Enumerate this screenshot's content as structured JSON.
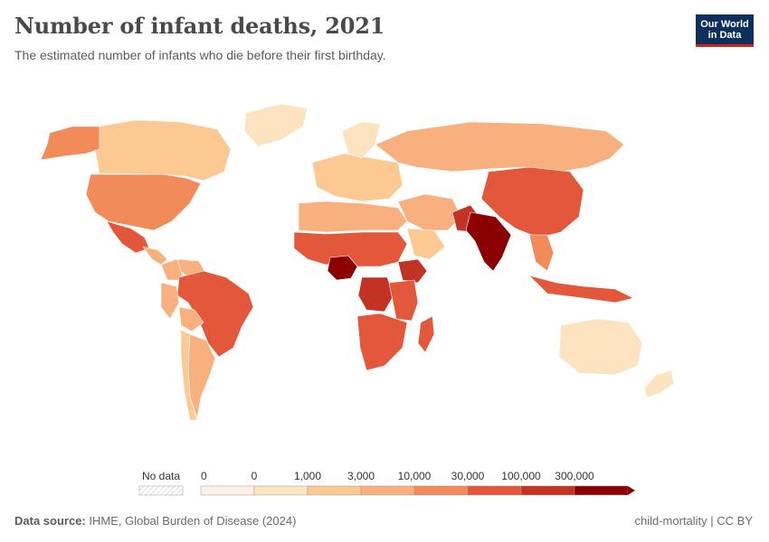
{
  "header": {
    "title": "Number of infant deaths, 2021",
    "subtitle": "The estimated number of infants who die before their first birthday."
  },
  "logo": {
    "line1": "Our World",
    "line2": "in Data"
  },
  "legend": {
    "no_data_label": "No data",
    "bins": [
      {
        "from": "0",
        "to": "0",
        "color": "#fef0e4"
      },
      {
        "from": "0",
        "to": "1,000",
        "color": "#fde3bf"
      },
      {
        "from": "1,000",
        "to": "3,000",
        "color": "#fbc991"
      },
      {
        "from": "3,000",
        "to": "10,000",
        "color": "#f8b07e"
      },
      {
        "from": "10,000",
        "to": "30,000",
        "color": "#f18c5a"
      },
      {
        "from": "30,000",
        "to": "100,000",
        "color": "#e3573b"
      },
      {
        "from": "100,000",
        "to": "300,000",
        "color": "#c23323"
      },
      {
        "from": "300,000",
        "to": "",
        "color": "#8b0000"
      }
    ],
    "tick_labels": [
      "0",
      "0",
      "1,000",
      "3,000",
      "10,000",
      "30,000",
      "100,000",
      "300,000"
    ]
  },
  "footer": {
    "source_label": "Data source:",
    "source_text": "IHME, Global Burden of Disease (2024)",
    "right_text": "child-mortality | CC BY"
  },
  "map_regions": [
    {
      "name": "Canada",
      "color": "#fbc991"
    },
    {
      "name": "Greenland",
      "color": "#fde3bf"
    },
    {
      "name": "Alaska",
      "color": "#f18c5a"
    },
    {
      "name": "United States",
      "color": "#f18c5a"
    },
    {
      "name": "Mexico",
      "color": "#e3573b"
    },
    {
      "name": "Central America",
      "color": "#f8b07e"
    },
    {
      "name": "Colombia",
      "color": "#f8b07e"
    },
    {
      "name": "Venezuela",
      "color": "#f8b07e"
    },
    {
      "name": "Brazil",
      "color": "#e3573b"
    },
    {
      "name": "Peru",
      "color": "#f8b07e"
    },
    {
      "name": "Bolivia",
      "color": "#f8b07e"
    },
    {
      "name": "Argentina",
      "color": "#f8b07e"
    },
    {
      "name": "Chile",
      "color": "#fbc991"
    },
    {
      "name": "Europe",
      "color": "#fbc991"
    },
    {
      "name": "Scandinavia",
      "color": "#fde3bf"
    },
    {
      "name": "Russia",
      "color": "#f8b07e"
    },
    {
      "name": "North Africa",
      "color": "#f8b07e"
    },
    {
      "name": "Sahel",
      "color": "#e3573b"
    },
    {
      "name": "Nigeria",
      "color": "#8b0000"
    },
    {
      "name": "Ethiopia",
      "color": "#c23323"
    },
    {
      "name": "DR Congo",
      "color": "#c23323"
    },
    {
      "name": "East Africa",
      "color": "#e3573b"
    },
    {
      "name": "Southern Africa",
      "color": "#e3573b"
    },
    {
      "name": "Madagascar",
      "color": "#e3573b"
    },
    {
      "name": "Middle East",
      "color": "#f8b07e"
    },
    {
      "name": "Arabia",
      "color": "#fbc991"
    },
    {
      "name": "Pakistan",
      "color": "#c23323"
    },
    {
      "name": "India",
      "color": "#8b0000"
    },
    {
      "name": "China",
      "color": "#e3573b"
    },
    {
      "name": "Southeast Asia",
      "color": "#f18c5a"
    },
    {
      "name": "Indonesia",
      "color": "#e3573b"
    },
    {
      "name": "Australia",
      "color": "#fde3bf"
    },
    {
      "name": "New Zealand",
      "color": "#fde3bf"
    }
  ]
}
